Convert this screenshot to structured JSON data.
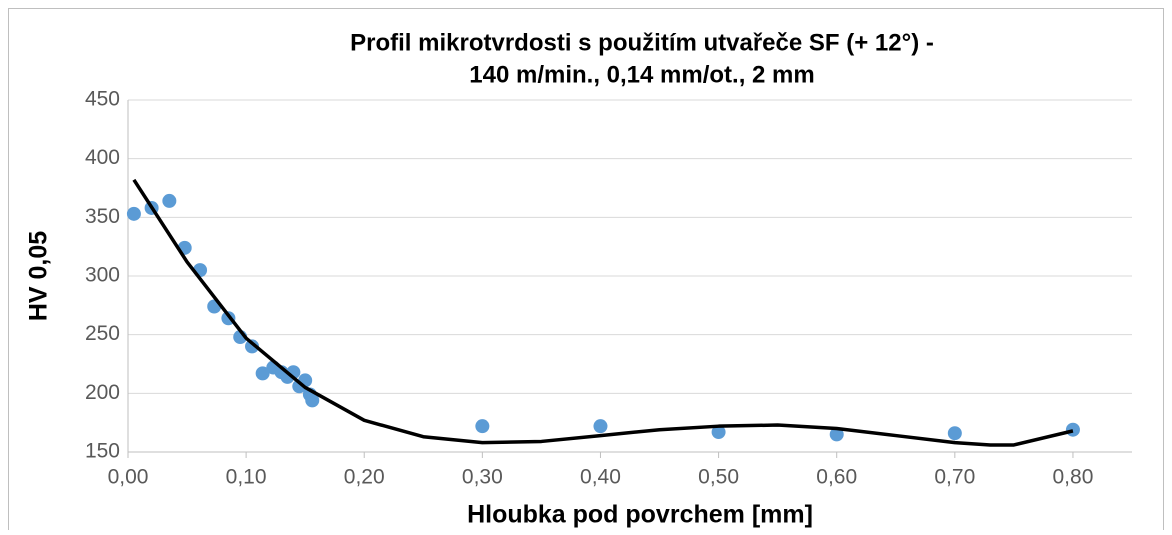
{
  "chart_data": {
    "type": "scatter",
    "title": [
      "Profil mikrotvrdosti s použitím utvařeče SF (+ 12°) -",
      "140 m/min., 0,14 mm/ot., 2 mm"
    ],
    "x_label": "Hloubka pod povrchem [mm]",
    "y_label": "HV 0,05",
    "series": [
      {
        "color": "#5b9bd5",
        "x": [
          0.005,
          0.02,
          0.035,
          0.048,
          0.061,
          0.073,
          0.085,
          0.095,
          0.105,
          0.114,
          0.123,
          0.13,
          0.135,
          0.14,
          0.145,
          0.15,
          0.154,
          0.156,
          0.3,
          0.4,
          0.5,
          0.6,
          0.7,
          0.8
        ],
        "values": [
          353,
          358,
          364,
          324,
          305,
          274,
          264,
          248,
          240,
          217,
          222,
          218,
          214,
          218,
          206,
          211,
          199,
          194,
          172,
          172,
          167,
          165,
          166,
          169
        ]
      }
    ],
    "trendline": {
      "color": "#000000",
      "x": [
        0.005,
        0.05,
        0.1,
        0.15,
        0.2,
        0.25,
        0.3,
        0.35,
        0.4,
        0.45,
        0.5,
        0.55,
        0.6,
        0.65,
        0.7,
        0.73,
        0.75,
        0.8
      ],
      "values": [
        382,
        312,
        247,
        205,
        177,
        163,
        158,
        159,
        164,
        169,
        172,
        173,
        170,
        164,
        158,
        156,
        156,
        168
      ]
    },
    "xlim": [
      0,
      0.85
    ],
    "xticks": [
      {
        "value": 0,
        "label": "0,00"
      },
      {
        "value": 0.1,
        "label": "0,10"
      },
      {
        "value": 0.2,
        "label": "0,20"
      },
      {
        "value": 0.3,
        "label": "0,30"
      },
      {
        "value": 0.4,
        "label": "0,40"
      },
      {
        "value": 0.5,
        "label": "0,50"
      },
      {
        "value": 0.6,
        "label": "0,60"
      },
      {
        "value": 0.7,
        "label": "0,70"
      },
      {
        "value": 0.8,
        "label": "0,80"
      }
    ],
    "ylim": [
      150,
      450
    ],
    "yticks": [
      150,
      200,
      250,
      300,
      350,
      400,
      450
    ],
    "grid": true
  }
}
